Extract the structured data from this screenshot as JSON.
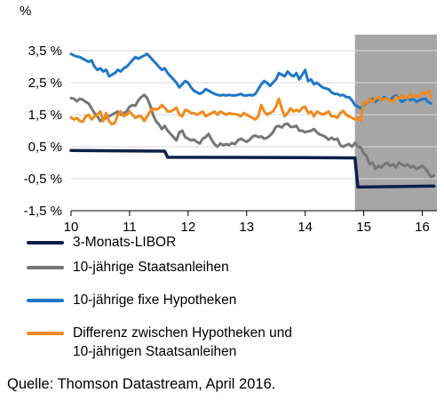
{
  "chart_data": {
    "type": "line",
    "unit_label": "%",
    "xlim": [
      10,
      16.25
    ],
    "ylim": [
      -1.5,
      4
    ],
    "x_ticks": [
      10,
      11,
      12,
      13,
      14,
      15,
      16
    ],
    "x_tick_labels": [
      "10",
      "11",
      "12",
      "13",
      "14",
      "15",
      "16"
    ],
    "y_ticks": [
      3.5,
      2.5,
      1.5,
      0.5,
      -0.5,
      -1.5
    ],
    "y_tick_labels": [
      "3,5 %",
      "2,5 %",
      "1,5 %",
      "0,5 %",
      "-0,5 %",
      "-1,5 %"
    ],
    "shaded_range": {
      "x": [
        14.85,
        16.25
      ],
      "color": "#a6a6a6"
    },
    "grid": "horizontal",
    "series": [
      {
        "name": "3-Monats-LIBOR",
        "color": "#0d1e4a",
        "x": [
          10.0,
          11.6,
          11.65,
          14.0,
          14.85,
          14.9,
          16.2
        ],
        "y": [
          0.38,
          0.36,
          0.17,
          0.16,
          0.15,
          -0.76,
          -0.73
        ]
      },
      {
        "name": "10-jährige Staatsanleihen",
        "color": "#767676",
        "x": [
          10.0,
          10.05,
          10.1,
          10.15,
          10.2,
          10.25,
          10.3,
          10.35,
          10.4,
          10.45,
          10.5,
          10.55,
          10.6,
          10.65,
          10.7,
          10.75,
          10.8,
          10.85,
          10.9,
          10.95,
          11.0,
          11.05,
          11.1,
          11.15,
          11.2,
          11.25,
          11.3,
          11.35,
          11.4,
          11.45,
          11.5,
          11.55,
          11.6,
          11.65,
          11.7,
          11.75,
          11.8,
          11.85,
          11.9,
          11.95,
          12.0,
          12.05,
          12.1,
          12.15,
          12.2,
          12.25,
          12.3,
          12.35,
          12.4,
          12.45,
          12.5,
          12.55,
          12.6,
          12.65,
          12.7,
          12.75,
          12.8,
          12.85,
          12.9,
          12.95,
          13.0,
          13.05,
          13.1,
          13.15,
          13.2,
          13.25,
          13.3,
          13.35,
          13.4,
          13.45,
          13.5,
          13.55,
          13.6,
          13.65,
          13.7,
          13.75,
          13.8,
          13.85,
          13.9,
          13.95,
          14.0,
          14.05,
          14.1,
          14.15,
          14.2,
          14.25,
          14.3,
          14.35,
          14.4,
          14.45,
          14.5,
          14.55,
          14.6,
          14.65,
          14.7,
          14.75,
          14.8,
          14.85,
          14.9,
          14.95,
          15.0,
          15.05,
          15.1,
          15.15,
          15.2,
          15.25,
          15.3,
          15.35,
          15.4,
          15.45,
          15.5,
          15.55,
          15.6,
          15.65,
          15.7,
          15.75,
          15.8,
          15.85,
          15.9,
          15.95,
          16.0,
          16.05,
          16.1,
          16.15,
          16.2
        ],
        "y": [
          2.02,
          2.0,
          1.92,
          2.0,
          1.97,
          1.9,
          1.85,
          1.7,
          1.55,
          1.45,
          1.3,
          1.35,
          1.4,
          1.45,
          1.5,
          1.55,
          1.6,
          1.5,
          1.55,
          1.6,
          1.75,
          1.8,
          1.78,
          1.95,
          2.05,
          2.12,
          2.02,
          1.8,
          1.5,
          1.3,
          1.2,
          1.05,
          1.15,
          1.0,
          0.9,
          0.8,
          0.7,
          0.95,
          1.0,
          0.8,
          0.75,
          0.7,
          0.72,
          0.65,
          0.6,
          0.75,
          0.8,
          0.9,
          0.72,
          0.58,
          0.5,
          0.6,
          0.55,
          0.58,
          0.55,
          0.62,
          0.58,
          0.7,
          0.75,
          0.7,
          0.65,
          0.72,
          0.82,
          0.85,
          0.8,
          0.82,
          0.75,
          0.78,
          0.85,
          0.95,
          1.12,
          1.15,
          1.1,
          1.2,
          1.22,
          1.12,
          1.12,
          1.15,
          1.0,
          1.0,
          0.95,
          0.98,
          1.0,
          1.05,
          0.95,
          0.88,
          0.85,
          0.8,
          0.72,
          0.78,
          0.72,
          0.75,
          0.55,
          0.5,
          0.55,
          0.58,
          0.5,
          0.62,
          0.5,
          0.48,
          0.3,
          0.2,
          -0.05,
          0.0,
          -0.2,
          -0.1,
          -0.15,
          -0.05,
          0.0,
          -0.1,
          -0.05,
          -0.15,
          0.0,
          -0.05,
          -0.1,
          -0.05,
          -0.15,
          -0.1,
          -0.2,
          -0.15,
          -0.1,
          -0.18,
          -0.3,
          -0.45,
          -0.4
        ]
      },
      {
        "name": "10-jährige fixe Hypotheken",
        "color": "#1f77c8",
        "x": [
          10.0,
          10.05,
          10.1,
          10.15,
          10.2,
          10.25,
          10.3,
          10.35,
          10.4,
          10.45,
          10.5,
          10.55,
          10.6,
          10.65,
          10.7,
          10.75,
          10.8,
          10.85,
          10.9,
          10.95,
          11.0,
          11.05,
          11.1,
          11.15,
          11.2,
          11.25,
          11.3,
          11.35,
          11.4,
          11.45,
          11.5,
          11.55,
          11.6,
          11.65,
          11.7,
          11.75,
          11.8,
          11.85,
          11.9,
          11.95,
          12.0,
          12.05,
          12.1,
          12.15,
          12.2,
          12.25,
          12.3,
          12.35,
          12.4,
          12.45,
          12.5,
          12.55,
          12.6,
          12.65,
          12.7,
          12.75,
          12.8,
          12.85,
          12.9,
          12.95,
          13.0,
          13.05,
          13.1,
          13.15,
          13.2,
          13.25,
          13.3,
          13.35,
          13.4,
          13.45,
          13.5,
          13.55,
          13.6,
          13.65,
          13.7,
          13.75,
          13.8,
          13.85,
          13.9,
          13.95,
          14.0,
          14.05,
          14.1,
          14.15,
          14.2,
          14.25,
          14.3,
          14.35,
          14.4,
          14.45,
          14.5,
          14.55,
          14.6,
          14.65,
          14.7,
          14.75,
          14.8,
          14.85,
          14.9,
          14.95,
          15.0,
          15.05,
          15.1,
          15.15,
          15.2,
          15.25,
          15.3,
          15.35,
          15.4,
          15.45,
          15.5,
          15.55,
          15.6,
          15.65,
          15.7,
          15.75,
          15.8,
          15.85,
          15.9,
          15.95,
          16.0,
          16.05,
          16.1,
          16.15
        ],
        "y": [
          3.4,
          3.35,
          3.32,
          3.3,
          3.25,
          3.2,
          3.15,
          3.2,
          3.0,
          2.9,
          2.95,
          2.85,
          2.9,
          2.7,
          2.75,
          2.8,
          2.9,
          2.85,
          2.95,
          3.0,
          3.1,
          3.2,
          3.3,
          3.25,
          3.3,
          3.35,
          3.4,
          3.3,
          3.2,
          3.1,
          3.0,
          2.9,
          2.95,
          2.8,
          2.7,
          2.6,
          2.5,
          2.35,
          2.45,
          2.55,
          2.5,
          2.35,
          2.25,
          2.2,
          2.15,
          2.2,
          2.3,
          2.25,
          2.2,
          2.15,
          2.12,
          2.1,
          2.12,
          2.1,
          2.12,
          2.1,
          2.1,
          2.12,
          2.15,
          2.1,
          2.1,
          2.12,
          2.1,
          2.15,
          2.3,
          2.45,
          2.55,
          2.5,
          2.4,
          2.5,
          2.6,
          2.8,
          2.75,
          2.7,
          2.85,
          2.75,
          2.7,
          2.8,
          2.6,
          2.75,
          2.9,
          2.55,
          2.6,
          2.45,
          2.5,
          2.42,
          2.35,
          2.32,
          2.3,
          2.2,
          2.15,
          2.15,
          2.1,
          2.12,
          2.05,
          2.05,
          1.95,
          1.8,
          1.75,
          1.7,
          1.8,
          1.85,
          1.95,
          2.0,
          1.9,
          2.0,
          1.95,
          2.05,
          2.0,
          1.95,
          2.05,
          2.1,
          2.0,
          1.9,
          1.95,
          2.0,
          1.95,
          2.0,
          1.9,
          1.95,
          1.98,
          2.0,
          1.9,
          1.85
        ]
      },
      {
        "name": "Differenz zwischen Hypotheken und\n10-jährigen Staatsanleihen",
        "color": "#f08a1c",
        "x": [
          10.0,
          10.05,
          10.1,
          10.15,
          10.2,
          10.25,
          10.3,
          10.35,
          10.4,
          10.45,
          10.5,
          10.55,
          10.6,
          10.65,
          10.7,
          10.75,
          10.8,
          10.85,
          10.9,
          10.95,
          11.0,
          11.05,
          11.1,
          11.15,
          11.2,
          11.25,
          11.3,
          11.35,
          11.4,
          11.45,
          11.5,
          11.55,
          11.6,
          11.65,
          11.7,
          11.75,
          11.8,
          11.85,
          11.9,
          11.95,
          12.0,
          12.05,
          12.1,
          12.15,
          12.2,
          12.25,
          12.3,
          12.35,
          12.4,
          12.45,
          12.5,
          12.55,
          12.6,
          12.65,
          12.7,
          12.75,
          12.8,
          12.85,
          12.9,
          12.95,
          13.0,
          13.05,
          13.1,
          13.15,
          13.2,
          13.25,
          13.3,
          13.35,
          13.4,
          13.45,
          13.5,
          13.55,
          13.6,
          13.65,
          13.7,
          13.75,
          13.8,
          13.85,
          13.9,
          13.95,
          14.0,
          14.05,
          14.1,
          14.15,
          14.2,
          14.25,
          14.3,
          14.35,
          14.4,
          14.45,
          14.5,
          14.55,
          14.6,
          14.65,
          14.7,
          14.75,
          14.8,
          14.85,
          14.9,
          14.95,
          15.0,
          15.05,
          15.1,
          15.15,
          15.2,
          15.25,
          15.3,
          15.35,
          15.4,
          15.45,
          15.5,
          15.55,
          15.6,
          15.65,
          15.7,
          15.75,
          15.8,
          15.85,
          15.9,
          15.95,
          16.0,
          16.05,
          16.1,
          16.15
        ],
        "y": [
          1.42,
          1.35,
          1.4,
          1.3,
          1.28,
          1.45,
          1.5,
          1.35,
          1.45,
          1.5,
          1.6,
          1.3,
          1.55,
          1.3,
          1.2,
          1.25,
          1.5,
          1.6,
          1.45,
          1.5,
          1.6,
          1.5,
          1.4,
          1.45,
          1.45,
          1.3,
          1.45,
          1.6,
          1.7,
          1.65,
          1.7,
          1.8,
          1.72,
          1.6,
          1.6,
          1.65,
          1.72,
          1.5,
          1.45,
          1.65,
          1.62,
          1.55,
          1.55,
          1.5,
          1.55,
          1.6,
          1.45,
          1.5,
          1.55,
          1.6,
          1.5,
          1.6,
          1.55,
          1.5,
          1.55,
          1.52,
          1.52,
          1.5,
          1.45,
          1.55,
          1.5,
          1.45,
          1.4,
          1.35,
          1.45,
          1.8,
          1.6,
          1.5,
          1.55,
          1.6,
          1.75,
          2.0,
          1.7,
          1.45,
          1.55,
          1.7,
          1.6,
          1.65,
          1.6,
          1.72,
          1.75,
          1.55,
          1.6,
          1.45,
          1.6,
          1.55,
          1.5,
          1.55,
          1.6,
          1.45,
          1.45,
          1.4,
          1.55,
          1.62,
          1.5,
          1.45,
          1.4,
          1.35,
          1.4,
          1.3,
          1.9,
          1.85,
          2.0,
          1.9,
          2.0,
          2.05,
          1.95,
          2.0,
          2.0,
          1.95,
          1.9,
          2.05,
          2.0,
          2.1,
          2.05,
          2.0,
          2.15,
          2.05,
          2.1,
          2.05,
          2.2,
          2.15,
          2.25,
          2.05
        ]
      }
    ]
  },
  "source_note": "Quelle: Thomson Datastream, April 2016."
}
